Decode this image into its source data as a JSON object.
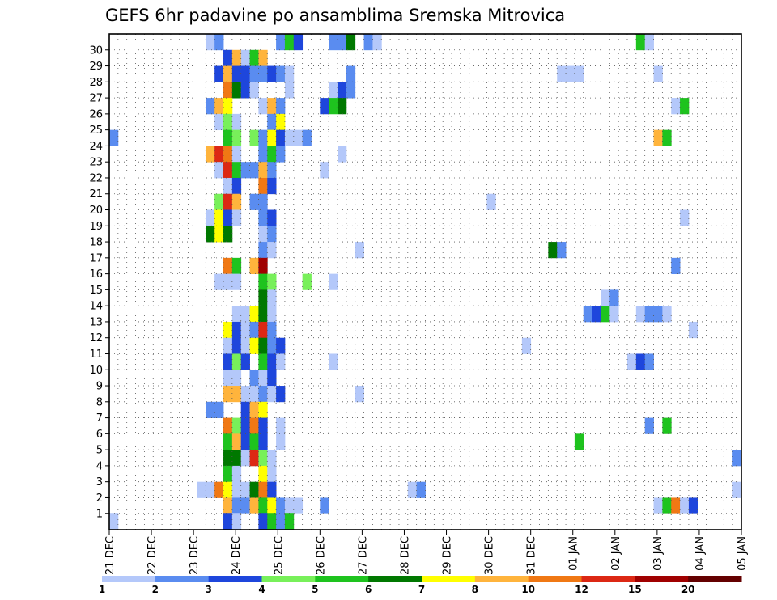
{
  "chart_data": {
    "type": "heatmap",
    "title": "GEFS 6hr padavine po ansamblima Sremska Mitrovica",
    "xlabel": "",
    "ylabel": "",
    "x_tick_labels": [
      "21 DEC",
      "22 DEC",
      "23 DEC",
      "24 DEC",
      "25 DEC",
      "26 DEC",
      "27 DEC",
      "28 DEC",
      "29 DEC",
      "30 DEC",
      "31 DEC",
      "01 JAN",
      "02 JAN",
      "03 JAN",
      "04 JAN",
      "05 JAN"
    ],
    "x_range_days": [
      0,
      15
    ],
    "x_step": "6 hours (4 steps per day)",
    "y_tick_labels": [
      "1",
      "2",
      "3",
      "4",
      "5",
      "6",
      "7",
      "8",
      "9",
      "10",
      "11",
      "12",
      "13",
      "14",
      "15",
      "16",
      "17",
      "18",
      "19",
      "20",
      "21",
      "22",
      "23",
      "24",
      "25",
      "26",
      "27",
      "28",
      "29",
      "30"
    ],
    "grid": "dotted",
    "legend": {
      "position": "bottom",
      "labels": [
        "1",
        "2",
        "3",
        "4",
        "5",
        "6",
        "7",
        "8",
        "10",
        "12",
        "15",
        "20"
      ],
      "colors": [
        "#b4c8fa",
        "#5a8cf0",
        "#1e46dc",
        "#78f05a",
        "#1ec31e",
        "#007800",
        "#ffff00",
        "#ffb43c",
        "#f07814",
        "#dc2814",
        "#a00000",
        "#640000"
      ]
    },
    "cell_encoding": "[member, start_step, run_length, level_index]",
    "cells": [
      [
        30,
        11,
        1,
        0
      ],
      [
        30,
        12,
        1,
        1
      ],
      [
        30,
        19,
        1,
        1
      ],
      [
        30,
        20,
        1,
        4
      ],
      [
        30,
        21,
        1,
        2
      ],
      [
        30,
        25,
        2,
        1
      ],
      [
        30,
        27,
        1,
        5
      ],
      [
        30,
        29,
        1,
        1
      ],
      [
        30,
        30,
        1,
        0
      ],
      [
        30,
        60,
        1,
        4
      ],
      [
        30,
        61,
        1,
        0
      ],
      [
        29,
        13,
        1,
        2
      ],
      [
        29,
        14,
        1,
        7
      ],
      [
        29,
        15,
        1,
        0
      ],
      [
        29,
        16,
        1,
        4
      ],
      [
        29,
        17,
        1,
        7
      ],
      [
        28,
        12,
        1,
        2
      ],
      [
        28,
        13,
        1,
        7
      ],
      [
        28,
        14,
        2,
        2
      ],
      [
        28,
        16,
        2,
        1
      ],
      [
        28,
        18,
        1,
        2
      ],
      [
        28,
        19,
        1,
        1
      ],
      [
        28,
        20,
        1,
        0
      ],
      [
        28,
        27,
        1,
        1
      ],
      [
        28,
        51,
        3,
        0
      ],
      [
        28,
        62,
        1,
        0
      ],
      [
        27,
        13,
        1,
        8
      ],
      [
        27,
        14,
        1,
        5
      ],
      [
        27,
        15,
        1,
        2
      ],
      [
        27,
        16,
        1,
        0
      ],
      [
        27,
        20,
        1,
        0
      ],
      [
        27,
        25,
        1,
        0
      ],
      [
        27,
        26,
        1,
        2
      ],
      [
        27,
        27,
        1,
        1
      ],
      [
        26,
        11,
        1,
        1
      ],
      [
        26,
        12,
        1,
        7
      ],
      [
        26,
        13,
        1,
        6
      ],
      [
        26,
        17,
        1,
        0
      ],
      [
        26,
        18,
        1,
        7
      ],
      [
        26,
        19,
        1,
        1
      ],
      [
        26,
        24,
        1,
        2
      ],
      [
        26,
        25,
        1,
        4
      ],
      [
        26,
        26,
        1,
        5
      ],
      [
        26,
        64,
        1,
        0
      ],
      [
        26,
        65,
        1,
        4
      ],
      [
        25,
        12,
        1,
        0
      ],
      [
        25,
        13,
        1,
        3
      ],
      [
        25,
        14,
        1,
        0
      ],
      [
        25,
        18,
        1,
        1
      ],
      [
        25,
        19,
        1,
        6
      ],
      [
        24,
        0,
        1,
        1
      ],
      [
        24,
        13,
        1,
        4
      ],
      [
        24,
        14,
        1,
        3
      ],
      [
        24,
        16,
        1,
        3
      ],
      [
        24,
        17,
        1,
        1
      ],
      [
        24,
        18,
        1,
        6
      ],
      [
        24,
        19,
        1,
        2
      ],
      [
        24,
        20,
        2,
        0
      ],
      [
        24,
        22,
        1,
        1
      ],
      [
        24,
        62,
        1,
        7
      ],
      [
        24,
        63,
        1,
        4
      ],
      [
        23,
        11,
        1,
        7
      ],
      [
        23,
        12,
        1,
        9
      ],
      [
        23,
        13,
        1,
        8
      ],
      [
        23,
        14,
        1,
        0
      ],
      [
        23,
        17,
        1,
        1
      ],
      [
        23,
        18,
        1,
        4
      ],
      [
        23,
        19,
        1,
        1
      ],
      [
        23,
        26,
        1,
        0
      ],
      [
        22,
        12,
        1,
        0
      ],
      [
        22,
        13,
        1,
        9
      ],
      [
        22,
        14,
        1,
        4
      ],
      [
        22,
        15,
        2,
        1
      ],
      [
        22,
        17,
        1,
        7
      ],
      [
        22,
        18,
        1,
        1
      ],
      [
        22,
        24,
        1,
        0
      ],
      [
        21,
        13,
        1,
        0
      ],
      [
        21,
        14,
        1,
        2
      ],
      [
        21,
        17,
        1,
        8
      ],
      [
        21,
        18,
        1,
        2
      ],
      [
        20,
        12,
        1,
        3
      ],
      [
        20,
        13,
        1,
        9
      ],
      [
        20,
        14,
        1,
        7
      ],
      [
        20,
        16,
        2,
        1
      ],
      [
        20,
        43,
        1,
        0
      ],
      [
        19,
        11,
        1,
        0
      ],
      [
        19,
        12,
        1,
        6
      ],
      [
        19,
        13,
        1,
        2
      ],
      [
        19,
        14,
        1,
        0
      ],
      [
        19,
        17,
        1,
        1
      ],
      [
        19,
        18,
        1,
        2
      ],
      [
        19,
        65,
        1,
        0
      ],
      [
        18,
        11,
        1,
        5
      ],
      [
        18,
        12,
        1,
        6
      ],
      [
        18,
        13,
        1,
        5
      ],
      [
        18,
        17,
        1,
        0
      ],
      [
        18,
        18,
        1,
        1
      ],
      [
        17,
        17,
        1,
        1
      ],
      [
        17,
        18,
        1,
        0
      ],
      [
        17,
        28,
        1,
        0
      ],
      [
        17,
        50,
        1,
        5
      ],
      [
        17,
        51,
        1,
        1
      ],
      [
        16,
        13,
        1,
        8
      ],
      [
        16,
        14,
        1,
        4
      ],
      [
        16,
        16,
        1,
        7
      ],
      [
        16,
        17,
        1,
        10
      ],
      [
        16,
        64,
        1,
        1
      ],
      [
        15,
        12,
        2,
        0
      ],
      [
        15,
        14,
        1,
        0
      ],
      [
        15,
        17,
        1,
        4
      ],
      [
        15,
        18,
        1,
        3
      ],
      [
        15,
        22,
        1,
        3
      ],
      [
        15,
        25,
        1,
        0
      ],
      [
        14,
        17,
        1,
        5
      ],
      [
        14,
        18,
        1,
        0
      ],
      [
        14,
        56,
        1,
        0
      ],
      [
        14,
        57,
        1,
        1
      ],
      [
        13,
        14,
        1,
        0
      ],
      [
        13,
        15,
        1,
        0
      ],
      [
        13,
        16,
        1,
        6
      ],
      [
        13,
        17,
        1,
        5
      ],
      [
        13,
        18,
        1,
        0
      ],
      [
        13,
        54,
        1,
        1
      ],
      [
        13,
        55,
        1,
        2
      ],
      [
        13,
        56,
        1,
        4
      ],
      [
        13,
        57,
        1,
        0
      ],
      [
        13,
        60,
        1,
        0
      ],
      [
        13,
        61,
        2,
        1
      ],
      [
        13,
        63,
        1,
        0
      ],
      [
        12,
        13,
        1,
        6
      ],
      [
        12,
        14,
        1,
        2
      ],
      [
        12,
        15,
        1,
        0
      ],
      [
        12,
        16,
        1,
        1
      ],
      [
        12,
        17,
        1,
        9
      ],
      [
        12,
        18,
        1,
        1
      ],
      [
        12,
        66,
        1,
        0
      ],
      [
        11,
        13,
        1,
        0
      ],
      [
        11,
        14,
        1,
        2
      ],
      [
        11,
        15,
        1,
        0
      ],
      [
        11,
        16,
        1,
        6
      ],
      [
        11,
        17,
        1,
        5
      ],
      [
        11,
        18,
        1,
        1
      ],
      [
        11,
        19,
        1,
        2
      ],
      [
        11,
        47,
        1,
        0
      ],
      [
        10,
        13,
        1,
        2
      ],
      [
        10,
        14,
        1,
        3
      ],
      [
        10,
        15,
        1,
        2
      ],
      [
        10,
        17,
        1,
        4
      ],
      [
        10,
        18,
        1,
        2
      ],
      [
        10,
        19,
        1,
        0
      ],
      [
        10,
        25,
        1,
        0
      ],
      [
        10,
        59,
        1,
        0
      ],
      [
        10,
        60,
        1,
        2
      ],
      [
        10,
        61,
        1,
        1
      ],
      [
        9,
        13,
        2,
        0
      ],
      [
        9,
        16,
        1,
        1
      ],
      [
        9,
        17,
        1,
        0
      ],
      [
        9,
        18,
        1,
        2
      ],
      [
        8,
        13,
        2,
        7
      ],
      [
        8,
        15,
        1,
        0
      ],
      [
        8,
        16,
        1,
        0
      ],
      [
        8,
        17,
        1,
        1
      ],
      [
        8,
        18,
        1,
        0
      ],
      [
        8,
        19,
        1,
        2
      ],
      [
        8,
        28,
        1,
        0
      ],
      [
        7,
        11,
        2,
        1
      ],
      [
        7,
        15,
        1,
        2
      ],
      [
        7,
        16,
        1,
        7
      ],
      [
        7,
        17,
        1,
        6
      ],
      [
        6,
        13,
        1,
        8
      ],
      [
        6,
        14,
        1,
        3
      ],
      [
        6,
        15,
        1,
        2
      ],
      [
        6,
        16,
        1,
        8
      ],
      [
        6,
        17,
        1,
        2
      ],
      [
        6,
        19,
        1,
        0
      ],
      [
        6,
        61,
        1,
        1
      ],
      [
        6,
        63,
        1,
        4
      ],
      [
        5,
        13,
        1,
        4
      ],
      [
        5,
        14,
        1,
        7
      ],
      [
        5,
        15,
        1,
        2
      ],
      [
        5,
        16,
        1,
        4
      ],
      [
        5,
        17,
        1,
        2
      ],
      [
        5,
        19,
        1,
        0
      ],
      [
        5,
        53,
        1,
        4
      ],
      [
        4,
        13,
        2,
        5
      ],
      [
        4,
        15,
        1,
        0
      ],
      [
        4,
        16,
        1,
        9
      ],
      [
        4,
        17,
        1,
        3
      ],
      [
        4,
        18,
        1,
        0
      ],
      [
        4,
        71,
        1,
        1
      ],
      [
        3,
        13,
        1,
        4
      ],
      [
        3,
        14,
        1,
        0
      ],
      [
        3,
        17,
        1,
        6
      ],
      [
        3,
        18,
        1,
        0
      ],
      [
        2,
        10,
        2,
        0
      ],
      [
        2,
        12,
        1,
        8
      ],
      [
        2,
        13,
        1,
        6
      ],
      [
        2,
        14,
        1,
        0
      ],
      [
        2,
        15,
        1,
        0
      ],
      [
        2,
        16,
        1,
        5
      ],
      [
        2,
        17,
        1,
        8
      ],
      [
        2,
        18,
        1,
        2
      ],
      [
        2,
        34,
        1,
        0
      ],
      [
        2,
        35,
        1,
        1
      ],
      [
        2,
        71,
        1,
        0
      ],
      [
        1,
        13,
        1,
        7
      ],
      [
        1,
        14,
        2,
        1
      ],
      [
        1,
        16,
        1,
        7
      ],
      [
        1,
        17,
        1,
        4
      ],
      [
        1,
        18,
        1,
        6
      ],
      [
        1,
        19,
        1,
        1
      ],
      [
        1,
        20,
        1,
        0
      ],
      [
        1,
        21,
        1,
        0
      ],
      [
        1,
        24,
        1,
        1
      ],
      [
        1,
        62,
        1,
        0
      ],
      [
        1,
        63,
        1,
        4
      ],
      [
        1,
        64,
        1,
        8
      ],
      [
        1,
        65,
        1,
        0
      ],
      [
        1,
        66,
        1,
        2
      ],
      [
        0,
        0,
        1,
        0
      ],
      [
        0,
        13,
        1,
        2
      ],
      [
        0,
        14,
        1,
        0
      ],
      [
        0,
        17,
        1,
        2
      ],
      [
        0,
        18,
        1,
        4
      ],
      [
        0,
        19,
        1,
        1
      ],
      [
        0,
        20,
        1,
        4
      ]
    ]
  }
}
